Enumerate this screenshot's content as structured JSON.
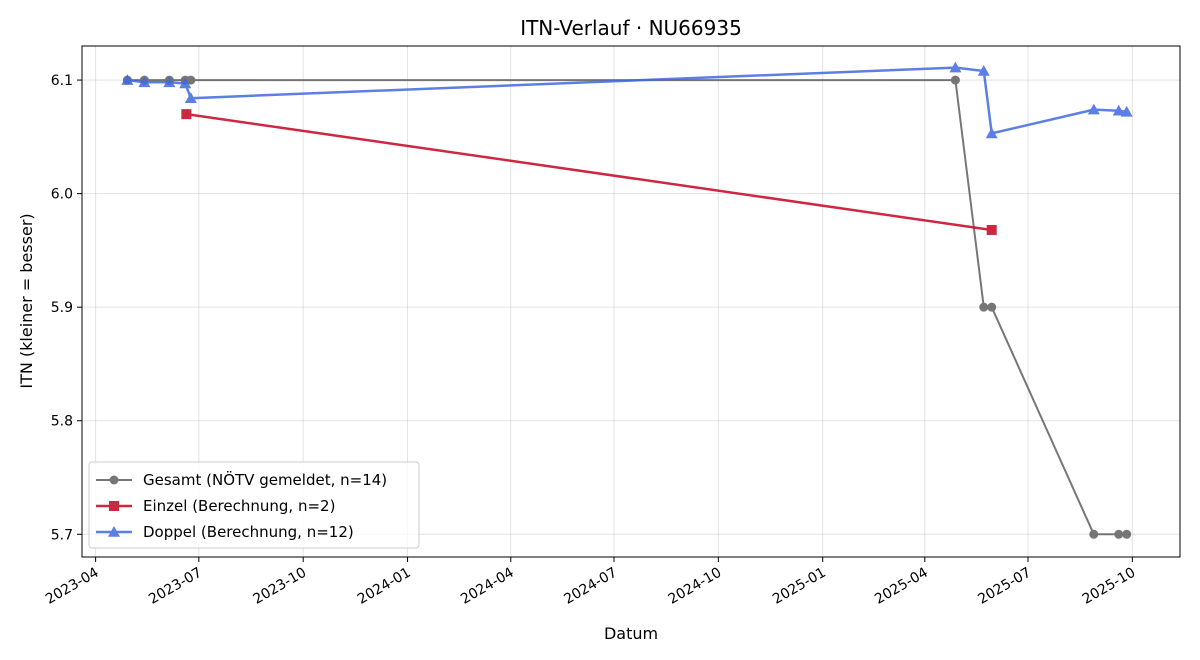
{
  "chart_data": {
    "type": "line",
    "title": "ITN-Verlauf · NU66935",
    "xlabel": "Datum",
    "ylabel": "ITN  (kleiner = besser)",
    "x_ticks": [
      "2023-04",
      "2023-07",
      "2023-10",
      "2024-01",
      "2024-04",
      "2024-07",
      "2024-10",
      "2025-01",
      "2025-04",
      "2025-07",
      "2025-10"
    ],
    "y_ticks": [
      "5.7",
      "5.8",
      "5.9",
      "6.0",
      "6.1"
    ],
    "ylim": [
      5.68,
      6.13
    ],
    "xlim": [
      "2023-03-20",
      "2025-11-12"
    ],
    "grid": true,
    "legend_position": "lower left",
    "series": [
      {
        "name": "Gesamt (NÖTV gemeldet, n=14)",
        "color": "#555555",
        "marker": "circle",
        "points": [
          {
            "x": "2023-04-29",
            "y": 6.1
          },
          {
            "x": "2023-05-14",
            "y": 6.1
          },
          {
            "x": "2023-06-05",
            "y": 6.1
          },
          {
            "x": "2023-06-19",
            "y": 6.1
          },
          {
            "x": "2023-06-24",
            "y": 6.1
          },
          {
            "x": "2025-04-28",
            "y": 6.1
          },
          {
            "x": "2025-05-23",
            "y": 5.9
          },
          {
            "x": "2025-05-30",
            "y": 5.9
          },
          {
            "x": "2025-08-28",
            "y": 5.7
          },
          {
            "x": "2025-09-19",
            "y": 5.7
          },
          {
            "x": "2025-09-26",
            "y": 5.7
          }
        ]
      },
      {
        "name": "Einzel (Berechnung, n=2)",
        "color": "#c8102e",
        "marker": "square",
        "points": [
          {
            "x": "2023-06-20",
            "y": 6.07
          },
          {
            "x": "2025-05-30",
            "y": 5.968
          }
        ]
      },
      {
        "name": "Doppel (Berechnung, n=12)",
        "color": "#4169e1",
        "marker": "triangle",
        "points": [
          {
            "x": "2023-04-29",
            "y": 6.1
          },
          {
            "x": "2023-05-14",
            "y": 6.098
          },
          {
            "x": "2023-06-05",
            "y": 6.098
          },
          {
            "x": "2023-06-19",
            "y": 6.097
          },
          {
            "x": "2023-06-24",
            "y": 6.084
          },
          {
            "x": "2025-04-28",
            "y": 6.111
          },
          {
            "x": "2025-05-23",
            "y": 6.108
          },
          {
            "x": "2025-05-30",
            "y": 6.053
          },
          {
            "x": "2025-08-28",
            "y": 6.074
          },
          {
            "x": "2025-09-19",
            "y": 6.073
          },
          {
            "x": "2025-09-26",
            "y": 6.072
          }
        ]
      }
    ]
  }
}
